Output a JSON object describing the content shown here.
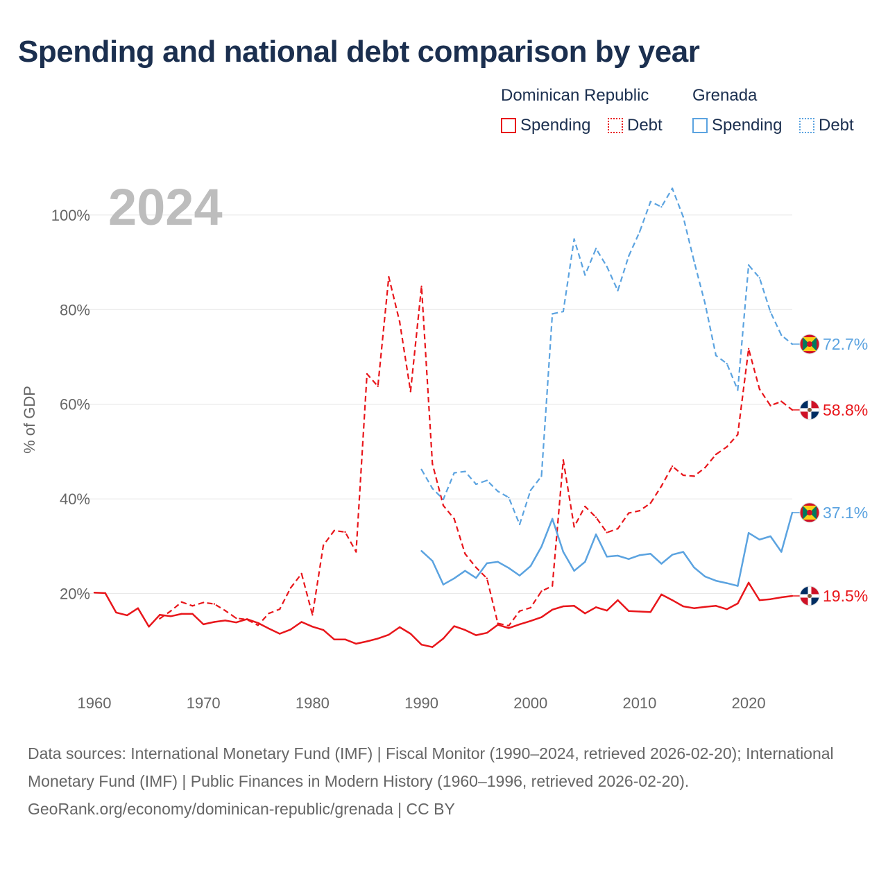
{
  "title": "Spending and national debt comparison by year",
  "legend": {
    "groups": [
      {
        "country": "Dominican Republic",
        "color": "#e8161b",
        "items": [
          {
            "label": "Spending",
            "style": "solid"
          },
          {
            "label": "Debt",
            "style": "dotted"
          }
        ]
      },
      {
        "country": "Grenada",
        "color": "#5ba3e0",
        "items": [
          {
            "label": "Spending",
            "style": "solid"
          },
          {
            "label": "Debt",
            "style": "dotted"
          }
        ]
      }
    ]
  },
  "footer": {
    "sources": "Data sources: International Monetary Fund (IMF) | Fiscal Monitor (1990–2024, retrieved 2026-02-20); International Monetary Fund (IMF) | Public Finances in Modern History (1960–1996, retrieved 2026-02-20).",
    "credit": "GeoRank.org/economy/dominican-republic/grenada | CC BY"
  },
  "chart_data": {
    "type": "line",
    "title": "Spending and national debt comparison by year",
    "year_watermark": "2024",
    "ylabel": "% of GDP",
    "xlabel": "",
    "xlim": [
      1960,
      2024
    ],
    "ylim": [
      0,
      110
    ],
    "x_ticks": [
      1960,
      1970,
      1980,
      1990,
      2000,
      2010,
      2020
    ],
    "y_ticks": [
      20,
      40,
      60,
      80,
      100
    ],
    "y_tick_labels": [
      "20%",
      "40%",
      "60%",
      "80%",
      "100%"
    ],
    "grid": true,
    "series": [
      {
        "name": "Dominican Republic Spending",
        "country": "Dominican Republic",
        "metric": "Spending",
        "color": "#e8161b",
        "dash": "solid",
        "end_label": "19.5%",
        "flag": "dominican-republic",
        "points": [
          [
            1960,
            20.2
          ],
          [
            1961,
            20.1
          ],
          [
            1962,
            16.0
          ],
          [
            1963,
            15.4
          ],
          [
            1964,
            16.9
          ],
          [
            1965,
            13.0
          ],
          [
            1966,
            15.5
          ],
          [
            1967,
            15.2
          ],
          [
            1968,
            15.7
          ],
          [
            1969,
            15.7
          ],
          [
            1970,
            13.5
          ],
          [
            1971,
            14.0
          ],
          [
            1972,
            14.3
          ],
          [
            1973,
            13.9
          ],
          [
            1974,
            14.6
          ],
          [
            1975,
            13.8
          ],
          [
            1976,
            12.6
          ],
          [
            1977,
            11.5
          ],
          [
            1978,
            12.4
          ],
          [
            1979,
            14.0
          ],
          [
            1980,
            13.0
          ],
          [
            1981,
            12.3
          ],
          [
            1982,
            10.3
          ],
          [
            1983,
            10.3
          ],
          [
            1984,
            9.4
          ],
          [
            1985,
            9.9
          ],
          [
            1986,
            10.5
          ],
          [
            1987,
            11.3
          ],
          [
            1988,
            12.9
          ],
          [
            1989,
            11.5
          ],
          [
            1990,
            9.2
          ],
          [
            1991,
            8.7
          ],
          [
            1992,
            10.5
          ],
          [
            1993,
            13.1
          ],
          [
            1994,
            12.3
          ],
          [
            1995,
            11.2
          ],
          [
            1996,
            11.7
          ],
          [
            1997,
            13.4
          ],
          [
            1998,
            12.7
          ],
          [
            1999,
            13.5
          ],
          [
            2000,
            14.2
          ],
          [
            2001,
            15.0
          ],
          [
            2002,
            16.6
          ],
          [
            2003,
            17.3
          ],
          [
            2004,
            17.4
          ],
          [
            2005,
            15.8
          ],
          [
            2006,
            17.1
          ],
          [
            2007,
            16.4
          ],
          [
            2008,
            18.6
          ],
          [
            2009,
            16.3
          ],
          [
            2010,
            16.2
          ],
          [
            2011,
            16.1
          ],
          [
            2012,
            19.8
          ],
          [
            2013,
            18.6
          ],
          [
            2014,
            17.3
          ],
          [
            2015,
            16.9
          ],
          [
            2016,
            17.2
          ],
          [
            2017,
            17.4
          ],
          [
            2018,
            16.7
          ],
          [
            2019,
            17.9
          ],
          [
            2020,
            22.3
          ],
          [
            2021,
            18.6
          ],
          [
            2022,
            18.8
          ],
          [
            2023,
            19.2
          ],
          [
            2024,
            19.5
          ]
        ]
      },
      {
        "name": "Dominican Republic Debt",
        "country": "Dominican Republic",
        "metric": "Debt",
        "color": "#e8161b",
        "dash": "dashed",
        "end_label": "58.8%",
        "flag": "dominican-republic",
        "points": [
          [
            1966,
            14.7
          ],
          [
            1967,
            16.3
          ],
          [
            1968,
            18.2
          ],
          [
            1969,
            17.4
          ],
          [
            1970,
            18.1
          ],
          [
            1971,
            17.8
          ],
          [
            1972,
            16.4
          ],
          [
            1973,
            14.8
          ],
          [
            1974,
            14.5
          ],
          [
            1975,
            13.3
          ],
          [
            1976,
            15.8
          ],
          [
            1977,
            16.7
          ],
          [
            1978,
            21.2
          ],
          [
            1979,
            24.2
          ],
          [
            1980,
            15.5
          ],
          [
            1981,
            30.2
          ],
          [
            1982,
            33.3
          ],
          [
            1983,
            33.0
          ],
          [
            1984,
            28.8
          ],
          [
            1985,
            66.4
          ],
          [
            1986,
            63.8
          ],
          [
            1987,
            86.9
          ],
          [
            1988,
            77.4
          ],
          [
            1989,
            62.7
          ],
          [
            1990,
            84.9
          ],
          [
            1991,
            47.4
          ],
          [
            1992,
            38.6
          ],
          [
            1993,
            35.8
          ],
          [
            1994,
            28.4
          ],
          [
            1995,
            25.5
          ],
          [
            1996,
            23.2
          ],
          [
            1997,
            13.7
          ],
          [
            1998,
            13.2
          ],
          [
            1999,
            16.3
          ],
          [
            2000,
            17.0
          ],
          [
            2001,
            20.5
          ],
          [
            2002,
            21.6
          ],
          [
            2003,
            48.2
          ],
          [
            2004,
            34.1
          ],
          [
            2005,
            38.4
          ],
          [
            2006,
            36.1
          ],
          [
            2007,
            32.9
          ],
          [
            2008,
            33.7
          ],
          [
            2009,
            37.0
          ],
          [
            2010,
            37.5
          ],
          [
            2011,
            39.1
          ],
          [
            2012,
            42.7
          ],
          [
            2013,
            46.9
          ],
          [
            2014,
            45.0
          ],
          [
            2015,
            44.8
          ],
          [
            2016,
            46.6
          ],
          [
            2017,
            49.4
          ],
          [
            2018,
            51.0
          ],
          [
            2019,
            53.6
          ],
          [
            2020,
            71.7
          ],
          [
            2021,
            63.2
          ],
          [
            2022,
            59.7
          ],
          [
            2023,
            60.6
          ],
          [
            2024,
            58.8
          ]
        ]
      },
      {
        "name": "Grenada Spending",
        "country": "Grenada",
        "metric": "Spending",
        "color": "#5ba3e0",
        "dash": "solid",
        "end_label": "37.1%",
        "flag": "grenada",
        "points": [
          [
            1990,
            29.0
          ],
          [
            1991,
            26.9
          ],
          [
            1992,
            21.9
          ],
          [
            1993,
            23.2
          ],
          [
            1994,
            24.8
          ],
          [
            1995,
            23.3
          ],
          [
            1996,
            26.4
          ],
          [
            1997,
            26.7
          ],
          [
            1998,
            25.4
          ],
          [
            1999,
            23.8
          ],
          [
            2000,
            25.8
          ],
          [
            2001,
            29.9
          ],
          [
            2002,
            35.8
          ],
          [
            2003,
            28.8
          ],
          [
            2004,
            24.8
          ],
          [
            2005,
            26.7
          ],
          [
            2006,
            32.5
          ],
          [
            2007,
            27.8
          ],
          [
            2008,
            28.0
          ],
          [
            2009,
            27.3
          ],
          [
            2010,
            28.1
          ],
          [
            2011,
            28.4
          ],
          [
            2012,
            26.3
          ],
          [
            2013,
            28.2
          ],
          [
            2014,
            28.8
          ],
          [
            2015,
            25.5
          ],
          [
            2016,
            23.6
          ],
          [
            2017,
            22.7
          ],
          [
            2018,
            22.2
          ],
          [
            2019,
            21.6
          ],
          [
            2020,
            32.8
          ],
          [
            2021,
            31.4
          ],
          [
            2022,
            32.1
          ],
          [
            2023,
            28.8
          ],
          [
            2024,
            37.1
          ]
        ]
      },
      {
        "name": "Grenada Debt",
        "country": "Grenada",
        "metric": "Debt",
        "color": "#5ba3e0",
        "dash": "dashed",
        "end_label": "72.7%",
        "flag": "grenada",
        "points": [
          [
            1990,
            46.2
          ],
          [
            1991,
            42.2
          ],
          [
            1992,
            39.9
          ],
          [
            1993,
            45.5
          ],
          [
            1994,
            45.8
          ],
          [
            1995,
            43.1
          ],
          [
            1996,
            43.9
          ],
          [
            1997,
            41.6
          ],
          [
            1998,
            40.3
          ],
          [
            1999,
            34.6
          ],
          [
            2000,
            41.8
          ],
          [
            2001,
            44.8
          ],
          [
            2002,
            79.1
          ],
          [
            2003,
            79.6
          ],
          [
            2004,
            94.9
          ],
          [
            2005,
            87.3
          ],
          [
            2006,
            92.9
          ],
          [
            2007,
            89.1
          ],
          [
            2008,
            84.0
          ],
          [
            2009,
            91.3
          ],
          [
            2010,
            96.4
          ],
          [
            2011,
            102.8
          ],
          [
            2012,
            101.7
          ],
          [
            2013,
            105.6
          ],
          [
            2014,
            99.6
          ],
          [
            2015,
            90.2
          ],
          [
            2016,
            81.3
          ],
          [
            2017,
            70.3
          ],
          [
            2018,
            68.6
          ],
          [
            2019,
            63.0
          ],
          [
            2020,
            89.4
          ],
          [
            2021,
            86.7
          ],
          [
            2022,
            79.5
          ],
          [
            2023,
            74.6
          ],
          [
            2024,
            72.7
          ]
        ]
      }
    ]
  }
}
